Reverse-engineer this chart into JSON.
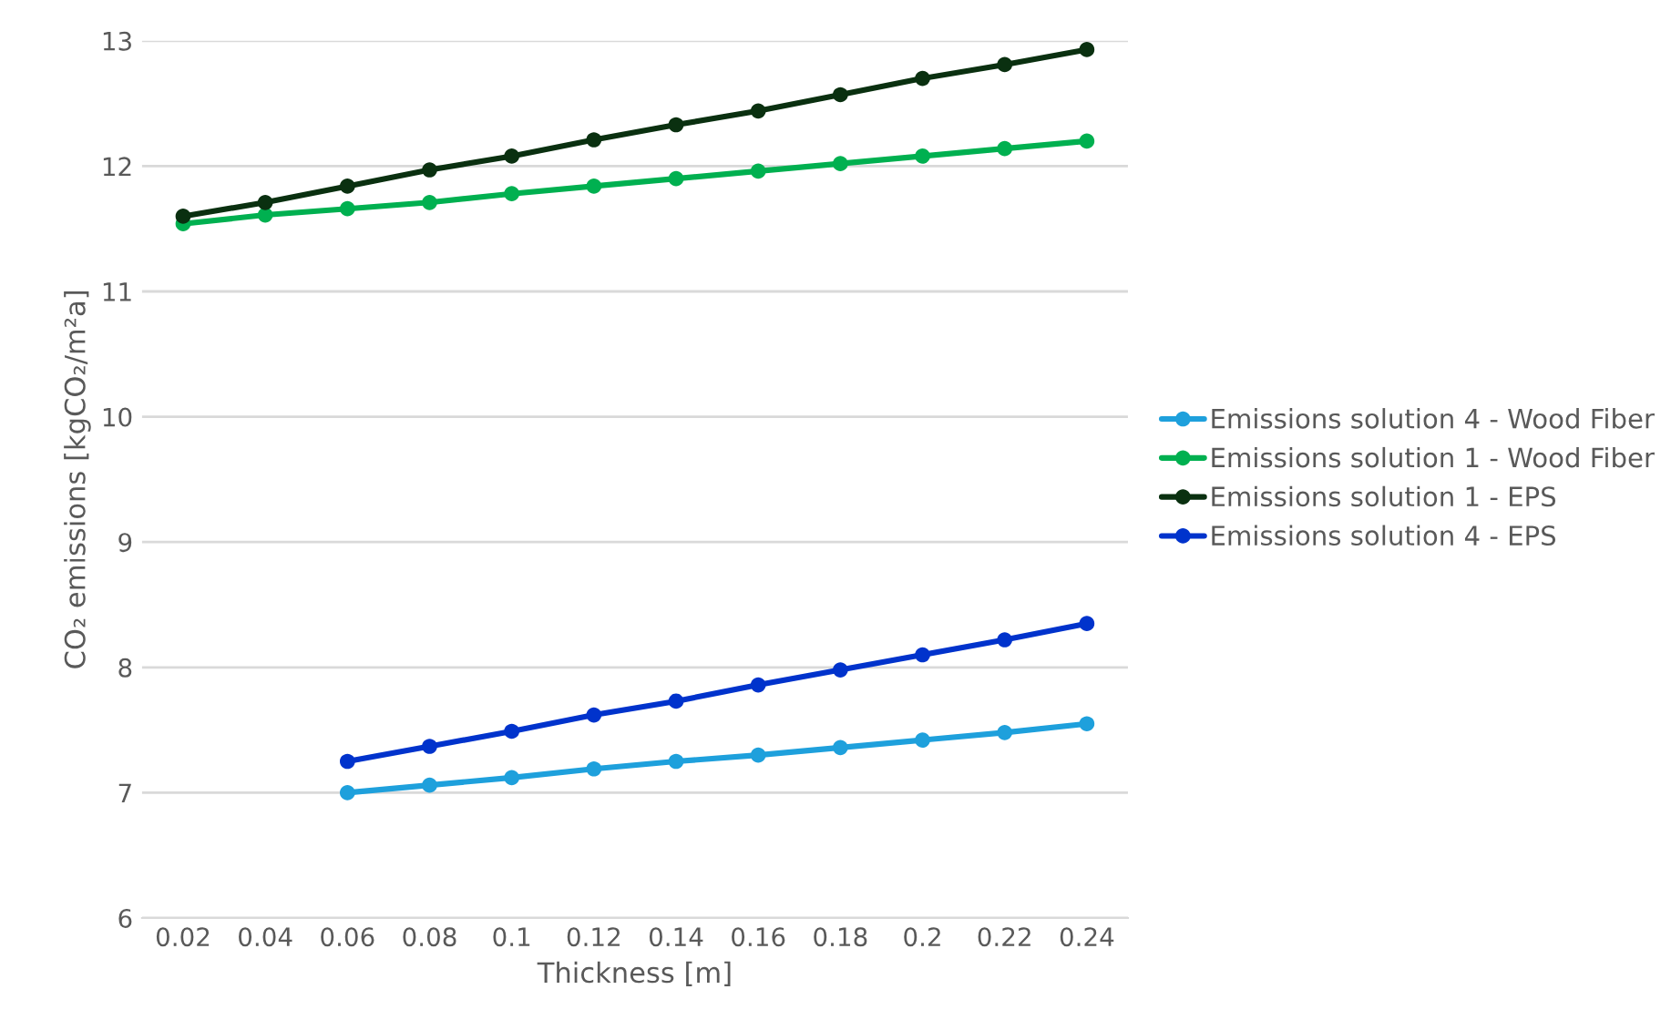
{
  "chart_data": {
    "type": "line",
    "xlabel": "Thickness [m]",
    "ylabel": "CO₂ emissions [kgCO₂/m²a]",
    "categories": [
      "0.02",
      "0.04",
      "0.06",
      "0.08",
      "0.1",
      "0.12",
      "0.14",
      "0.16",
      "0.18",
      "0.2",
      "0.22",
      "0.24"
    ],
    "series": [
      {
        "name": "Emissions solution 4 - Wood Fiber",
        "color": "#1ea0dc",
        "values": [
          null,
          null,
          7.0,
          7.06,
          7.12,
          7.19,
          7.25,
          7.3,
          7.36,
          7.42,
          7.48,
          7.55
        ]
      },
      {
        "name": "Emissions solution 1 - Wood Fiber",
        "color": "#00b050",
        "values": [
          11.54,
          11.61,
          11.66,
          11.71,
          11.78,
          11.84,
          11.9,
          11.96,
          12.02,
          12.08,
          12.14,
          12.2
        ]
      },
      {
        "name": "Emissions solution 1 - EPS",
        "color": "#0a3010",
        "values": [
          11.6,
          11.71,
          11.84,
          11.97,
          12.08,
          12.21,
          12.33,
          12.44,
          12.57,
          12.7,
          12.81,
          12.93
        ]
      },
      {
        "name": "Emissions solution 4 - EPS",
        "color": "#0033cc",
        "values": [
          null,
          null,
          7.25,
          7.37,
          7.49,
          7.62,
          7.73,
          7.86,
          7.98,
          8.1,
          8.22,
          8.35
        ]
      }
    ],
    "ylim": [
      6,
      13
    ],
    "yticks": [
      6,
      7,
      8,
      9,
      10,
      11,
      12,
      13
    ],
    "grid": "y",
    "legend": "right",
    "marker": "circle",
    "line_style": "solid"
  }
}
